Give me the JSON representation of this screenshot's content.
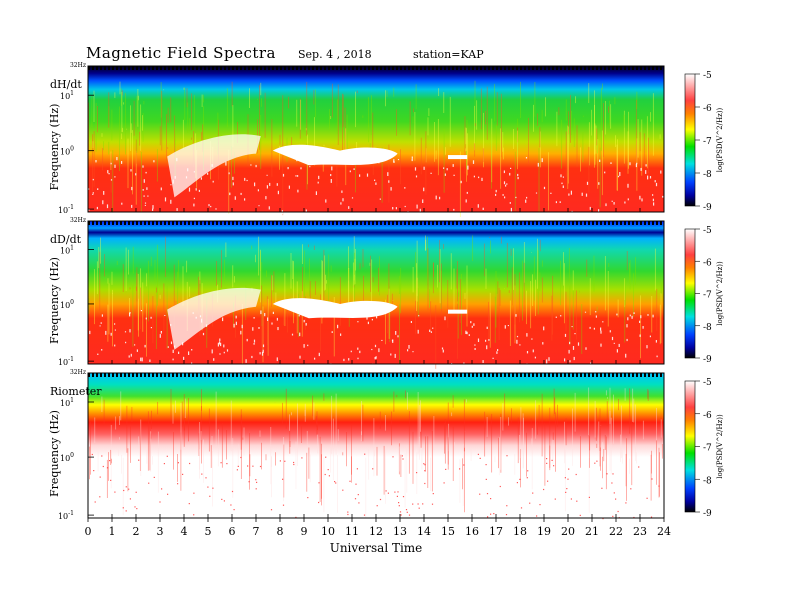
{
  "header": {
    "title": "Magnetic  Field  Spectra",
    "date": "Sep. 4  , 2018",
    "station": "station=KAP"
  },
  "chart_data": [
    {
      "type": "heatmap",
      "panel": "dH/dt",
      "ylabel": "Frequency  (Hz)",
      "y_top_label": "32Hz",
      "y_ticks": [
        "10¹",
        "10⁰",
        "10⁻¹"
      ],
      "x_range": [
        0,
        24
      ],
      "y_scale": "log",
      "colorbar": {
        "label": "log(PSD(V^2/Hz))",
        "range": [
          -9,
          -5
        ],
        "ticks": [
          "-5",
          "-6",
          "-7",
          "-8",
          "-9"
        ]
      }
    },
    {
      "type": "heatmap",
      "panel": "dD/dt",
      "ylabel": "Frequency  (Hz)",
      "y_top_label": "32Hz",
      "y_ticks": [
        "10¹",
        "10⁰",
        "10⁻¹"
      ],
      "x_range": [
        0,
        24
      ],
      "y_scale": "log",
      "colorbar": {
        "label": "log(PSD(V^2/Hz))",
        "range": [
          -9,
          -5
        ],
        "ticks": [
          "-5",
          "-6",
          "-7",
          "-8",
          "-9"
        ]
      }
    },
    {
      "type": "heatmap",
      "panel": "Riometer",
      "ylabel": "Frequency  (Hz)",
      "y_top_label": "32Hz",
      "y_ticks": [
        "10¹",
        "10⁰",
        "10⁻¹"
      ],
      "x_range": [
        0,
        24
      ],
      "y_scale": "log",
      "colorbar": {
        "label": "log(PSD(V^2/Hz))",
        "range": [
          -9,
          -5
        ],
        "ticks": [
          "-5",
          "-6",
          "-7",
          "-8",
          "-9"
        ]
      }
    }
  ],
  "xaxis": {
    "label": "Universal Time",
    "ticks": [
      "0",
      "1",
      "2",
      "3",
      "4",
      "5",
      "6",
      "7",
      "8",
      "9",
      "10",
      "11",
      "12",
      "13",
      "14",
      "15",
      "16",
      "17",
      "18",
      "19",
      "20",
      "21",
      "22",
      "23",
      "24"
    ]
  }
}
